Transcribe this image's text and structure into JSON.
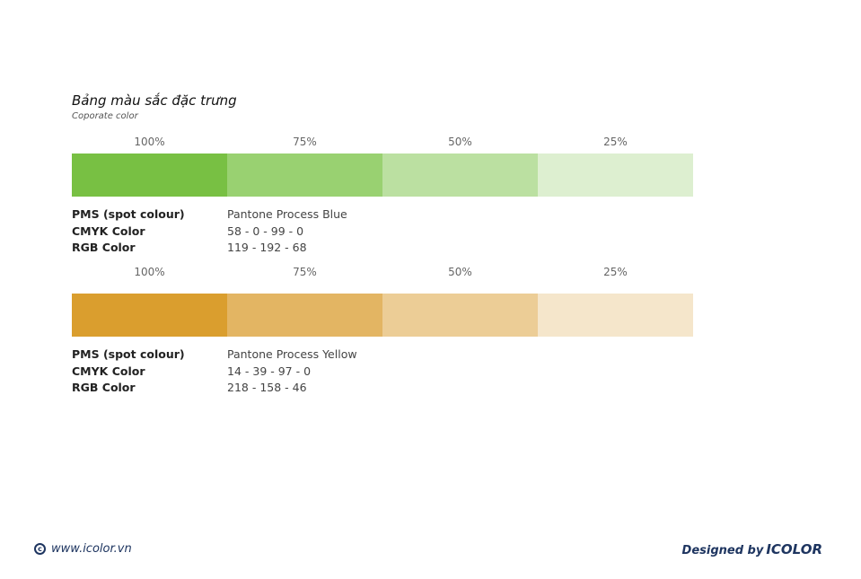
{
  "header": {
    "title": "Bảng màu sắc đặc trưng",
    "subtitle": "Coporate color"
  },
  "palettes": [
    {
      "tints": [
        {
          "label": "100%",
          "color": "#78c043"
        },
        {
          "label": "75%",
          "color": "#99d171"
        },
        {
          "label": "50%",
          "color": "#bbe0a1"
        },
        {
          "label": "25%",
          "color": "#ddefd0"
        }
      ],
      "specs": [
        {
          "label": "PMS (spot colour)",
          "value": "Pantone Process Blue"
        },
        {
          "label": "CMYK Color",
          "value": "58 - 0 - 99 - 0"
        },
        {
          "label": "RGB Color",
          "value": "119 - 192 - 68"
        }
      ]
    },
    {
      "tints": [
        {
          "label": "100%",
          "color": "#da9e2e"
        },
        {
          "label": "75%",
          "color": "#e3b563"
        },
        {
          "label": "50%",
          "color": "#eccd96"
        },
        {
          "label": "25%",
          "color": "#f5e6cb"
        }
      ],
      "specs": [
        {
          "label": "PMS (spot colour)",
          "value": "Pantone Process Yellow"
        },
        {
          "label": "CMYK Color",
          "value": "14 - 39 - 97 - 0"
        },
        {
          "label": "RGB Color",
          "value": "218 - 158 - 46"
        }
      ]
    }
  ],
  "footer": {
    "copyright_glyph": "c",
    "website": "www.icolor.vn",
    "designed_by": "Designed by",
    "brand": "ICOLOR",
    "text_color": "#1e3560"
  }
}
